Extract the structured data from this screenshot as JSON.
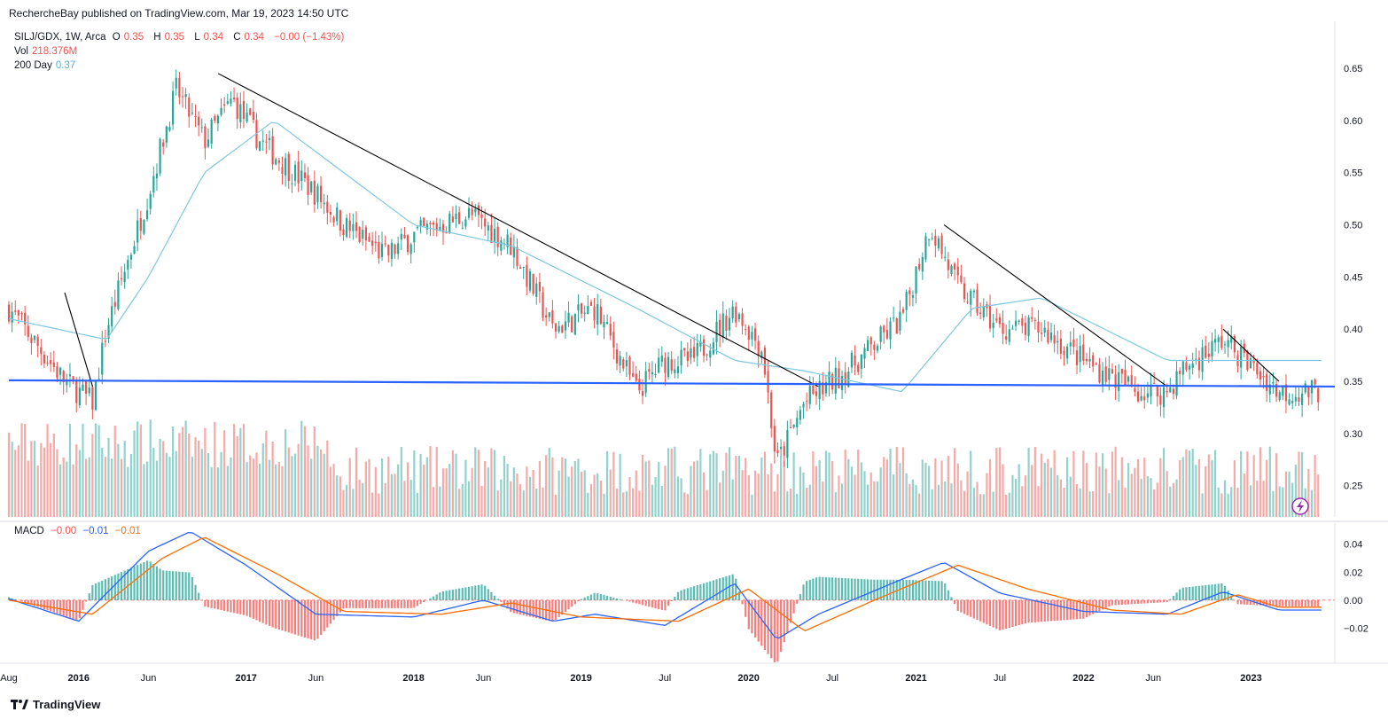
{
  "header": {
    "text": "RechercheBay published on TradingView.com, Mar 19, 2023 14:50 UTC"
  },
  "legend": {
    "symbol": "SILJ/GDX, 1W, Arca",
    "o_label": "O",
    "o_val": "0.35",
    "h_label": "H",
    "h_val": "0.35",
    "l_label": "L",
    "l_val": "0.34",
    "c_label": "C",
    "c_val": "0.34",
    "change": "−0.00 (−1.43%)",
    "vol_label": "Vol",
    "vol_val": "218.376M",
    "ma_label": "200 Day",
    "ma_val": "0.37",
    "macd_label": "MACD",
    "macd_hist": "−0.00",
    "macd_line": "−0.01",
    "macd_signal": "−0.01"
  },
  "footer": {
    "brand": "TradingView"
  },
  "colors": {
    "up": "#26a69a",
    "down": "#ef5350",
    "ma": "#7cc7e0",
    "support": "#2962ff",
    "macd": "#2962ff",
    "signal": "#ff6d00"
  },
  "chart_data": {
    "type": "candlestick",
    "ylim": [
      0.22,
      0.69
    ],
    "yticks": [
      "0.65",
      "0.60",
      "0.55",
      "0.50",
      "0.45",
      "0.40",
      "0.35",
      "0.30",
      "0.25"
    ],
    "xticks": [
      "Aug",
      "2016",
      "Jun",
      "2017",
      "Jun",
      "2018",
      "Jun",
      "2019",
      "Jul",
      "2020",
      "Jul",
      "2021",
      "Jul",
      "2022",
      "Jun",
      "2023"
    ],
    "close_keypoints": [
      [
        "2015-08",
        0.42
      ],
      [
        "2015-12",
        0.35
      ],
      [
        "2016-02",
        0.33
      ],
      [
        "2016-03",
        0.4
      ],
      [
        "2016-06",
        0.53
      ],
      [
        "2016-08",
        0.63
      ],
      [
        "2016-10",
        0.58
      ],
      [
        "2016-12",
        0.62
      ],
      [
        "2017-02",
        0.58
      ],
      [
        "2017-06",
        0.53
      ],
      [
        "2017-08",
        0.5
      ],
      [
        "2017-11",
        0.47
      ],
      [
        "2018-01",
        0.49
      ],
      [
        "2018-05",
        0.51
      ],
      [
        "2018-08",
        0.48
      ],
      [
        "2018-11",
        0.4
      ],
      [
        "2019-02",
        0.42
      ],
      [
        "2019-05",
        0.34
      ],
      [
        "2019-07",
        0.37
      ],
      [
        "2019-09",
        0.37
      ],
      [
        "2019-12",
        0.42
      ],
      [
        "2020-02",
        0.38
      ],
      [
        "2020-03",
        0.27
      ],
      [
        "2020-05",
        0.33
      ],
      [
        "2020-08",
        0.36
      ],
      [
        "2020-12",
        0.41
      ],
      [
        "2021-02",
        0.5
      ],
      [
        "2021-04",
        0.44
      ],
      [
        "2021-07",
        0.4
      ],
      [
        "2021-10",
        0.4
      ],
      [
        "2022-01",
        0.37
      ],
      [
        "2022-05",
        0.34
      ],
      [
        "2022-07",
        0.34
      ],
      [
        "2022-08",
        0.36
      ],
      [
        "2022-11",
        0.39
      ],
      [
        "2023-03",
        0.34
      ]
    ],
    "ma_200_keypoints": [
      [
        "2015-08",
        0.41
      ],
      [
        "2016-03",
        0.39
      ],
      [
        "2016-06",
        0.45
      ],
      [
        "2016-10",
        0.55
      ],
      [
        "2017-03",
        0.6
      ],
      [
        "2018-01",
        0.5
      ],
      [
        "2018-08",
        0.48
      ],
      [
        "2019-05",
        0.42
      ],
      [
        "2019-12",
        0.37
      ],
      [
        "2020-05",
        0.36
      ],
      [
        "2020-12",
        0.34
      ],
      [
        "2021-05",
        0.42
      ],
      [
        "2021-10",
        0.43
      ],
      [
        "2022-07",
        0.37
      ],
      [
        "2023-03",
        0.37
      ]
    ],
    "trendlines": [
      {
        "from": [
          "2015-12",
          0.435
        ],
        "to": [
          "2016-02",
          0.345
        ]
      },
      {
        "from": [
          "2016-11",
          0.645
        ],
        "to": [
          "2020-06",
          0.345
        ]
      },
      {
        "from": [
          "2021-03",
          0.5
        ],
        "to": [
          "2022-07",
          0.345
        ]
      },
      {
        "from": [
          "2022-11",
          0.4
        ],
        "to": [
          "2023-03",
          0.35
        ]
      }
    ],
    "support_level": {
      "start": 0.351,
      "end": 0.345
    },
    "macd": {
      "ylim": [
        -0.045,
        0.055
      ],
      "yticks": [
        "0.04",
        "0.02",
        "0.00",
        "−0.02"
      ],
      "macd_keypoints": [
        [
          "2015-08",
          0.001
        ],
        [
          "2016-01",
          -0.015
        ],
        [
          "2016-06",
          0.035
        ],
        [
          "2016-09",
          0.049
        ],
        [
          "2017-01",
          0.025
        ],
        [
          "2017-06",
          -0.01
        ],
        [
          "2018-01",
          -0.012
        ],
        [
          "2018-06",
          0.0
        ],
        [
          "2018-11",
          -0.015
        ],
        [
          "2019-02",
          -0.01
        ],
        [
          "2019-07",
          -0.018
        ],
        [
          "2019-12",
          0.012
        ],
        [
          "2020-03",
          -0.028
        ],
        [
          "2020-06",
          -0.01
        ],
        [
          "2020-12",
          0.015
        ],
        [
          "2021-03",
          0.027
        ],
        [
          "2021-07",
          0.005
        ],
        [
          "2022-01",
          -0.008
        ],
        [
          "2022-07",
          -0.01
        ],
        [
          "2022-11",
          0.006
        ],
        [
          "2023-03",
          -0.007
        ]
      ],
      "signal_keypoints": [
        [
          "2015-08",
          0.0
        ],
        [
          "2016-02",
          -0.01
        ],
        [
          "2016-07",
          0.03
        ],
        [
          "2016-10",
          0.045
        ],
        [
          "2017-03",
          0.02
        ],
        [
          "2017-08",
          -0.008
        ],
        [
          "2018-03",
          -0.01
        ],
        [
          "2018-08",
          -0.002
        ],
        [
          "2019-01",
          -0.012
        ],
        [
          "2019-08",
          -0.015
        ],
        [
          "2020-01",
          0.008
        ],
        [
          "2020-05",
          -0.022
        ],
        [
          "2020-10",
          0.0
        ],
        [
          "2021-04",
          0.025
        ],
        [
          "2021-09",
          0.008
        ],
        [
          "2022-03",
          -0.007
        ],
        [
          "2022-08",
          -0.01
        ],
        [
          "2022-12",
          0.004
        ],
        [
          "2023-03",
          -0.005
        ]
      ]
    }
  }
}
